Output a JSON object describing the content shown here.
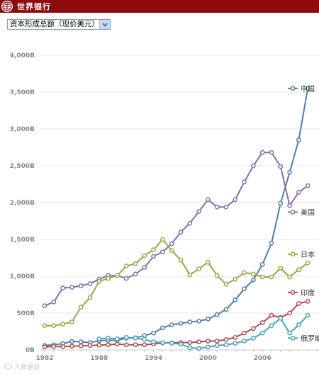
{
  "header": {
    "brand": "世界银行",
    "background": "#8c0a0c"
  },
  "indicator_select": {
    "selected": "资本形成总额（现价美元）"
  },
  "watermark": {
    "text": "大数据谈"
  },
  "chart_data": {
    "type": "line",
    "title": "",
    "xlabel": "",
    "ylabel": "",
    "x": [
      1982,
      1983,
      1984,
      1985,
      1986,
      1987,
      1988,
      1989,
      1990,
      1991,
      1992,
      1993,
      1994,
      1995,
      1996,
      1997,
      1998,
      1999,
      2000,
      2001,
      2002,
      2003,
      2004,
      2005,
      2006,
      2007,
      2008,
      2009,
      2010,
      2011,
      2012
    ],
    "xticks": [
      1982,
      1988,
      1994,
      2000,
      2006
    ],
    "xtick_labels": [
      "1982",
      "1988",
      "1994",
      "2000",
      "2006"
    ],
    "ylim": [
      0,
      4000
    ],
    "yticks": [
      0,
      500,
      1000,
      1500,
      2000,
      2500,
      3000,
      3500,
      4000
    ],
    "ytick_labels": [
      "0B",
      "500B",
      "1,000B",
      "1,500B",
      "2,000B",
      "2,500B",
      "3,000B",
      "3,500B",
      "4,000B"
    ],
    "grid": "horizontal",
    "legend_placement": "right, at series end",
    "series": [
      {
        "name": "中国",
        "color": "#4f7fa8",
        "values": [
          60,
          70,
          85,
          115,
          110,
          100,
          125,
          130,
          130,
          160,
          165,
          195,
          230,
          300,
          340,
          360,
          380,
          390,
          420,
          480,
          550,
          680,
          830,
          950,
          1160,
          1450,
          1990,
          2410,
          2850,
          3550,
          null
        ],
        "legend_y": 3550
      },
      {
        "name": "美国",
        "color": "#8571a8",
        "values": [
          600,
          650,
          840,
          850,
          870,
          900,
          960,
          1010,
          1010,
          970,
          1030,
          1120,
          1270,
          1330,
          1440,
          1600,
          1720,
          1880,
          2040,
          1940,
          1940,
          2040,
          2280,
          2500,
          2680,
          2680,
          2490,
          1960,
          2140,
          2230,
          null
        ],
        "legend_y": 1870
      },
      {
        "name": "日本",
        "color": "#8eae4a",
        "values": [
          330,
          330,
          350,
          380,
          580,
          710,
          930,
          970,
          1010,
          1140,
          1170,
          1280,
          1360,
          1500,
          1350,
          1220,
          1020,
          1100,
          1190,
          1010,
          890,
          960,
          1050,
          1030,
          990,
          990,
          1110,
          990,
          1090,
          1180,
          null
        ],
        "legend_y": 1300
      },
      {
        "name": "印度",
        "color": "#b04d4b",
        "values": [
          40,
          45,
          45,
          50,
          55,
          60,
          65,
          70,
          80,
          70,
          70,
          70,
          80,
          95,
          95,
          100,
          100,
          110,
          120,
          120,
          140,
          170,
          230,
          290,
          370,
          470,
          440,
          500,
          630,
          660,
          null
        ],
        "legend_y": 780
      },
      {
        "name": "俄罗斯",
        "color": "#4aa4b6",
        "values": [
          null,
          null,
          null,
          null,
          null,
          null,
          150,
          160,
          150,
          170,
          160,
          140,
          110,
          100,
          90,
          80,
          30,
          20,
          40,
          60,
          70,
          90,
          120,
          160,
          230,
          330,
          430,
          230,
          340,
          470,
          null
        ],
        "legend_y": 160
      }
    ]
  }
}
